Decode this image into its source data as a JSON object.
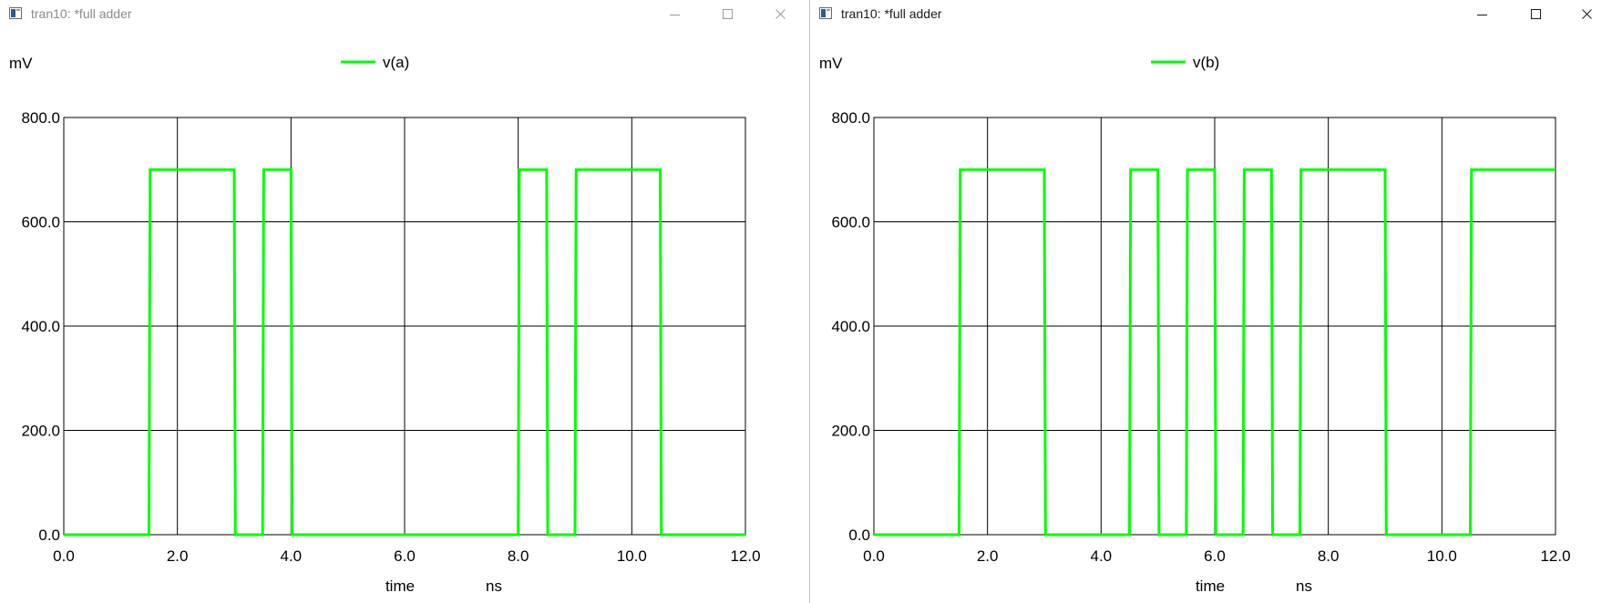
{
  "windows": [
    {
      "title": "tran10: *full adder",
      "active": false,
      "icons": [
        "app-icon",
        "minimize-icon",
        "maximize-icon",
        "close-icon"
      ],
      "chart_data": {
        "type": "line",
        "ylabel": "mV",
        "xlabel": "time",
        "xunit": "ns",
        "xlim": [
          0,
          12
        ],
        "ylim": [
          0,
          800
        ],
        "xticks": [
          "0.0",
          "2.0",
          "4.0",
          "6.0",
          "8.0",
          "10.0",
          "12.0"
        ],
        "yticks": [
          "0.0",
          "200.0",
          "400.0",
          "600.0",
          "800.0"
        ],
        "grid": true,
        "legend": "top-center",
        "series": [
          {
            "name": "v(a)",
            "color": "#00ff00",
            "x": [
              0,
              1.5,
              1.52,
              3.0,
              3.02,
              3.5,
              3.52,
              4.0,
              4.02,
              8.0,
              8.02,
              8.5,
              8.52,
              9.0,
              9.02,
              10.5,
              10.52,
              12.0
            ],
            "y": [
              0,
              0,
              700,
              700,
              0,
              0,
              700,
              700,
              0,
              0,
              700,
              700,
              0,
              0,
              700,
              700,
              0,
              0
            ]
          }
        ]
      }
    },
    {
      "title": "tran10: *full adder",
      "active": true,
      "icons": [
        "app-icon",
        "minimize-icon",
        "maximize-icon",
        "close-icon"
      ],
      "chart_data": {
        "type": "line",
        "ylabel": "mV",
        "xlabel": "time",
        "xunit": "ns",
        "xlim": [
          0,
          12
        ],
        "ylim": [
          0,
          800
        ],
        "xticks": [
          "0.0",
          "2.0",
          "4.0",
          "6.0",
          "8.0",
          "10.0",
          "12.0"
        ],
        "yticks": [
          "0.0",
          "200.0",
          "400.0",
          "600.0",
          "800.0"
        ],
        "grid": true,
        "legend": "top-center",
        "series": [
          {
            "name": "v(b)",
            "color": "#00ff00",
            "x": [
              0,
              1.5,
              1.52,
              3.0,
              3.02,
              4.5,
              4.52,
              5.0,
              5.02,
              5.5,
              5.52,
              6.0,
              6.02,
              6.5,
              6.52,
              7.0,
              7.02,
              7.5,
              7.52,
              9.0,
              9.02,
              10.5,
              10.52,
              12.0
            ],
            "y": [
              0,
              0,
              700,
              700,
              0,
              0,
              700,
              700,
              0,
              0,
              700,
              700,
              0,
              0,
              700,
              700,
              0,
              0,
              700,
              700,
              0,
              0,
              700,
              700
            ]
          }
        ]
      }
    }
  ]
}
